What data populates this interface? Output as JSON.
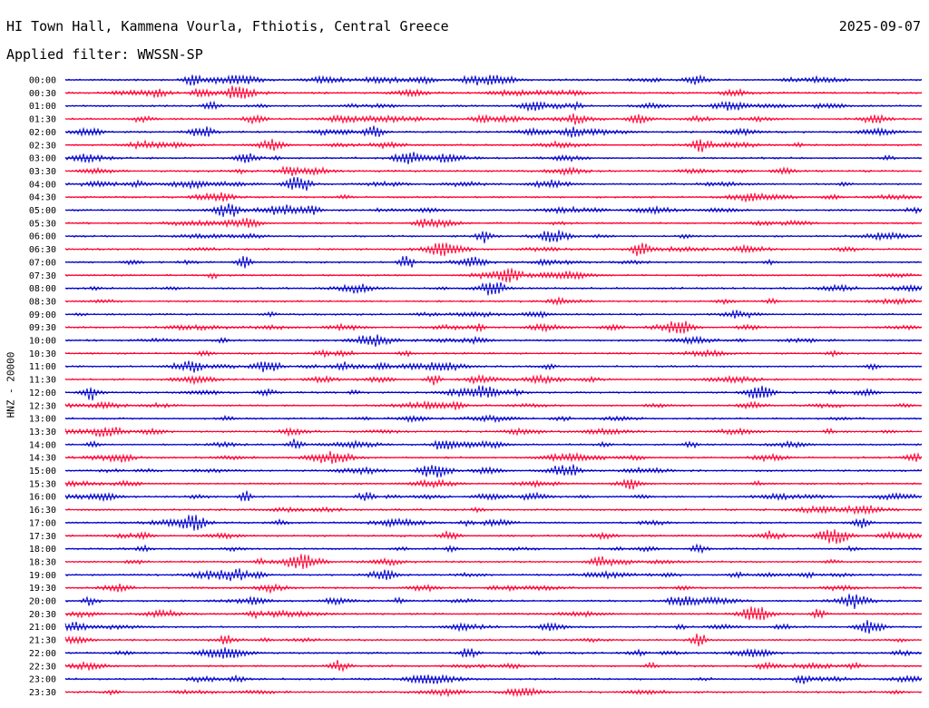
{
  "header": {
    "station": "HI Town Hall, Kammena Vourla, Fthiotis, Central Greece",
    "date": "2025-09-07",
    "filter": "Applied filter: WWSSN-SP"
  },
  "chart_data": {
    "type": "line",
    "channel_label": "HNZ - 20000",
    "trace_colors": [
      "#0000cc",
      "#ff0033"
    ],
    "rows": [
      {
        "label": "00:00",
        "events": [
          15,
          48,
          51
        ]
      },
      {
        "label": "00:30",
        "events": [
          16,
          20
        ]
      },
      {
        "label": "01:00",
        "events": [
          17
        ]
      },
      {
        "label": "01:30",
        "events": [
          22,
          67
        ]
      },
      {
        "label": "02:00",
        "events": [
          16,
          36
        ]
      },
      {
        "label": "02:30",
        "events": [
          24,
          74
        ]
      },
      {
        "label": "03:00",
        "events": [
          21,
          40
        ]
      },
      {
        "label": "03:30",
        "events": []
      },
      {
        "label": "04:00",
        "events": [
          27
        ]
      },
      {
        "label": "04:30",
        "events": []
      },
      {
        "label": "05:00",
        "events": [
          19
        ]
      },
      {
        "label": "05:30",
        "events": []
      },
      {
        "label": "06:00",
        "events": [
          49
        ]
      },
      {
        "label": "06:30",
        "events": [
          67
        ]
      },
      {
        "label": "07:00",
        "events": [
          21,
          40
        ]
      },
      {
        "label": "07:30",
        "events": [
          52
        ]
      },
      {
        "label": "08:00",
        "events": [
          50
        ]
      },
      {
        "label": "08:30",
        "events": []
      },
      {
        "label": "09:00",
        "events": []
      },
      {
        "label": "09:30",
        "events": [
          72
        ]
      },
      {
        "label": "10:00",
        "events": []
      },
      {
        "label": "10:30",
        "events": []
      },
      {
        "label": "11:00",
        "events": [
          15,
          24
        ]
      },
      {
        "label": "11:30",
        "events": [
          43
        ]
      },
      {
        "label": "12:00",
        "events": [
          3,
          81
        ]
      },
      {
        "label": "12:30",
        "events": []
      },
      {
        "label": "13:00",
        "events": []
      },
      {
        "label": "13:30",
        "events": []
      },
      {
        "label": "14:00",
        "events": [
          27,
          44
        ]
      },
      {
        "label": "14:30",
        "events": []
      },
      {
        "label": "15:00",
        "events": [
          58,
          43
        ]
      },
      {
        "label": "15:30",
        "events": [
          66
        ]
      },
      {
        "label": "16:00",
        "events": [
          21,
          35
        ]
      },
      {
        "label": "16:30",
        "events": []
      },
      {
        "label": "17:00",
        "events": [
          15,
          93
        ]
      },
      {
        "label": "17:30",
        "events": [
          90
        ]
      },
      {
        "label": "18:00",
        "events": [
          74
        ]
      },
      {
        "label": "18:30",
        "events": [
          28
        ]
      },
      {
        "label": "19:00",
        "events": [
          20,
          37
        ]
      },
      {
        "label": "19:30",
        "events": [
          24
        ]
      },
      {
        "label": "20:00",
        "events": [
          3
        ]
      },
      {
        "label": "20:30",
        "events": [
          88
        ]
      },
      {
        "label": "21:00",
        "events": [
          1,
          94
        ]
      },
      {
        "label": "21:30",
        "events": [
          74
        ]
      },
      {
        "label": "22:00",
        "events": [
          47
        ]
      },
      {
        "label": "22:30",
        "events": [
          32
        ]
      },
      {
        "label": "23:00",
        "events": [
          86
        ]
      },
      {
        "label": "23:30",
        "events": []
      }
    ]
  }
}
